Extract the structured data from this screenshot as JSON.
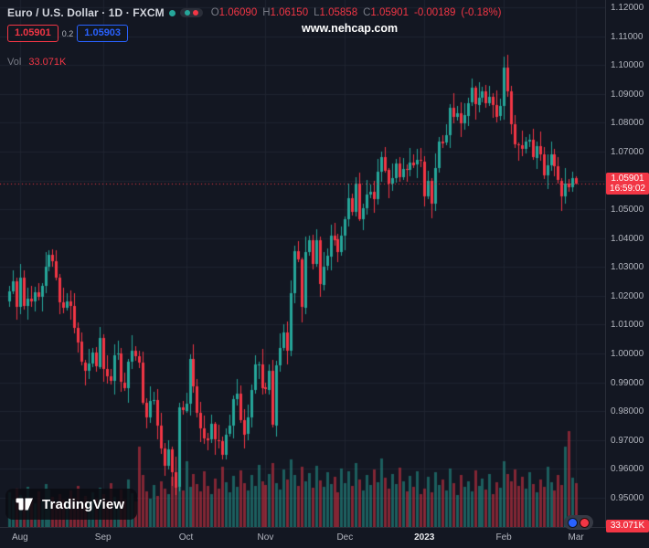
{
  "header": {
    "title": "Euro / U.S. Dollar · 1D · FXCM",
    "ohlc": {
      "o_label": "O",
      "o": "1.06090",
      "h_label": "H",
      "h": "1.06150",
      "l_label": "L",
      "l": "1.05858",
      "c_label": "C",
      "c": "1.05901",
      "change": "-0.00189",
      "change_pct": "(-0.18%)"
    },
    "bid": "1.05901",
    "spread": "0.2",
    "ask": "1.05903",
    "vol_label": "Vol",
    "vol_value": "33.071K"
  },
  "watermark": "www.nehcap.com",
  "price_tag": {
    "price": "1.05901",
    "countdown": "16:59:02"
  },
  "volume_tag": "33.071K",
  "logo": {
    "text": "TradingView"
  },
  "colors": {
    "background": "#131722",
    "grid": "#1f2430",
    "up": "#26a69a",
    "down": "#f23645",
    "axis_text": "#b2b5be",
    "accent_red": "#f23645",
    "accent_blue": "#2962ff"
  },
  "chart_data": {
    "type": "candlestick+volume",
    "title": "Euro / U.S. Dollar · 1D · FXCM",
    "legend": [
      "price candles",
      "volume"
    ],
    "y_axis": {
      "min": 0.95,
      "max": 1.12,
      "step": 0.01,
      "decimals": 5
    },
    "x_ticks": [
      {
        "label": "Aug",
        "index": 3
      },
      {
        "label": "Sep",
        "index": 26
      },
      {
        "label": "Oct",
        "index": 49
      },
      {
        "label": "Nov",
        "index": 71
      },
      {
        "label": "Dec",
        "index": 93
      },
      {
        "label": "2023",
        "index": 115,
        "major": true
      },
      {
        "label": "Feb",
        "index": 137
      },
      {
        "label": "Mar",
        "index": 157
      }
    ],
    "first_open": 1.018,
    "closes": [
      1.0215,
      1.025,
      1.016,
      1.0262,
      1.0165,
      1.019,
      1.018,
      1.0212,
      1.0196,
      1.0235,
      1.03,
      1.0341,
      1.032,
      1.0262,
      1.0178,
      1.016,
      1.0182,
      1.0165,
      1.009,
      1.004,
      0.997,
      0.994,
      0.9965,
      1.0002,
      0.9954,
      1.0054,
      0.9945,
      0.992,
      0.9905,
      0.9995,
      0.9999,
      0.99,
      0.988,
      0.9972,
      1.001,
      0.999,
      0.9968,
      0.983,
      0.978,
      0.9836,
      0.984,
      0.975,
      0.967,
      0.961,
      0.9668,
      0.959,
      0.9536,
      0.9813,
      0.9802,
      0.9826,
      0.9982,
      0.9886,
      0.9793,
      0.974,
      0.9705,
      0.97,
      0.9755,
      0.97,
      0.9697,
      0.965,
      0.972,
      0.975,
      0.9842,
      0.9862,
      0.977,
      0.972,
      0.9778,
      0.9872,
      0.9962,
      0.9963,
      0.9882,
      0.9875,
      0.994,
      0.9752,
      0.996,
      1.002,
      1.0073,
      1.001,
      1.021,
      1.0355,
      1.0325,
      1.016,
      1.0352,
      1.0392,
      1.031,
      1.0392,
      1.024,
      1.0302,
      1.0338,
      1.041,
      1.0395,
      1.035,
      1.0408,
      1.0466,
      1.0538,
      1.0492,
      1.059,
      1.0468,
      1.0505,
      1.0552,
      1.056,
      1.0535,
      1.063,
      1.0682,
      1.0636,
      1.059,
      1.0608,
      1.066,
      1.0612,
      1.064,
      1.0637,
      1.0663,
      1.0655,
      1.067,
      1.0666,
      1.0546,
      1.06,
      1.052,
      1.0642,
      1.0735,
      1.073,
      1.0756,
      1.0852,
      1.082,
      1.0832,
      1.0796,
      1.0825,
      1.0868,
      1.092,
      1.0862,
      1.0888,
      1.091,
      1.0868,
      1.089,
      1.0862,
      1.0822,
      1.0858,
      1.0992,
      1.091,
      1.0795,
      1.0725,
      1.0722,
      1.071,
      1.0735,
      1.074,
      1.068,
      1.072,
      1.069,
      1.0618,
      1.0652,
      1.069,
      1.0648,
      1.06,
      1.0545,
      1.059,
      1.0578,
      1.0609,
      1.059
    ],
    "wick_up": [
      0.0021,
      0.0038,
      0.0014,
      0.0049,
      0.0027,
      0.0038,
      0.0044,
      0.0019,
      0.0033,
      0.0008,
      0.0052,
      0.0016
    ],
    "wick_dn": [
      0.0017,
      0.0009,
      0.0042,
      0.0023,
      0.0012,
      0.0047,
      0.002,
      0.0035,
      0.001,
      0.0051,
      0.0026,
      0.0015
    ],
    "volumes": [
      38,
      30,
      42,
      35,
      28,
      44,
      31,
      26,
      39,
      29,
      47,
      41,
      33,
      27,
      36,
      30,
      24,
      40,
      32,
      45,
      28,
      34,
      26,
      38,
      31,
      43,
      36,
      29,
      48,
      33,
      27,
      41,
      30,
      52,
      37,
      28,
      88,
      57,
      39,
      31,
      46,
      34,
      50,
      42,
      36,
      55,
      60,
      48,
      40,
      72,
      44,
      58,
      47,
      39,
      61,
      45,
      36,
      53,
      42,
      66,
      49,
      38,
      56,
      44,
      62,
      48,
      40,
      57,
      45,
      68,
      50,
      46,
      58,
      70,
      48,
      41,
      63,
      52,
      74,
      57,
      45,
      66,
      50,
      59,
      43,
      67,
      51,
      44,
      60,
      47,
      55,
      38,
      64,
      48,
      61,
      45,
      70,
      52,
      40,
      57,
      46,
      63,
      49,
      75,
      54,
      42,
      58,
      47,
      65,
      50,
      39,
      56,
      44,
      61,
      36,
      42,
      55,
      38,
      60,
      46,
      52,
      40,
      64,
      48,
      35,
      57,
      44,
      50,
      39,
      62,
      45,
      53,
      41,
      58,
      36,
      49,
      43,
      72,
      58,
      50,
      63,
      45,
      55,
      42,
      60,
      47,
      38,
      52,
      44,
      66,
      49,
      40,
      57,
      46,
      88,
      105,
      54,
      48
    ],
    "last_candle": {
      "open": 1.0609,
      "high": 1.0615,
      "low": 1.05858,
      "close": 1.05901
    },
    "current_price": 1.05901,
    "current_volume_label": "33.071K"
  }
}
